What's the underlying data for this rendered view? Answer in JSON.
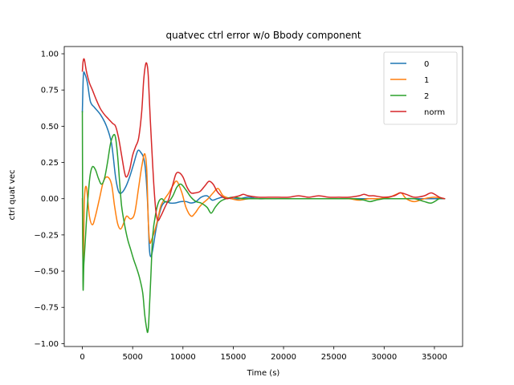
{
  "chart_data": {
    "type": "line",
    "title": "quatvec ctrl error w/o Bbody component",
    "xlabel": "Time (s)",
    "ylabel": "ctrl quat vec",
    "xlim": [
      -1800,
      37800
    ],
    "ylim": [
      -1.02,
      1.05
    ],
    "xticks": [
      0,
      5000,
      10000,
      15000,
      20000,
      25000,
      30000,
      35000
    ],
    "xtick_labels": [
      "0",
      "5000",
      "10000",
      "15000",
      "20000",
      "25000",
      "30000",
      "35000"
    ],
    "yticks": [
      -1.0,
      -0.75,
      -0.5,
      -0.25,
      0.0,
      0.25,
      0.5,
      0.75,
      1.0
    ],
    "ytick_labels": [
      "−1.00",
      "−0.75",
      "−0.50",
      "−0.25",
      "0.00",
      "0.25",
      "0.50",
      "0.75",
      "1.00"
    ],
    "grid": false,
    "legend_position": "upper right",
    "series": [
      {
        "name": "0",
        "color": "#1f77b4",
        "x": [
          0,
          100,
          250,
          500,
          800,
          1200,
          1800,
          2400,
          2900,
          3300,
          3600,
          3900,
          4300,
          4700,
          5100,
          5500,
          5800,
          6100,
          6300,
          6500,
          6650,
          6800,
          7000,
          7300,
          7600,
          7900,
          8300,
          8700,
          9200,
          9800,
          10300,
          10800,
          11300,
          11800,
          12400,
          12900,
          13400,
          14000,
          14800,
          15600,
          16500,
          17500,
          18500,
          19500,
          20500,
          21500,
          22500,
          23500,
          24500,
          25500,
          26500,
          27500,
          28500,
          29500,
          30500,
          31500,
          32500,
          33500,
          34500,
          35500,
          36000
        ],
        "y": [
          0.6,
          0.85,
          0.86,
          0.8,
          0.67,
          0.63,
          0.58,
          0.5,
          0.38,
          0.15,
          0.05,
          0.04,
          0.08,
          0.15,
          0.24,
          0.33,
          0.32,
          0.28,
          0.18,
          -0.05,
          -0.33,
          -0.4,
          -0.35,
          -0.22,
          -0.12,
          -0.05,
          -0.02,
          -0.03,
          -0.03,
          -0.02,
          -0.02,
          -0.03,
          -0.02,
          0.01,
          0.02,
          -0.01,
          0.0,
          0.01,
          0.0,
          0.0,
          0.01,
          0.0,
          0.0,
          0.0,
          0.0,
          0.0,
          0.0,
          0.0,
          0.0,
          0.0,
          0.0,
          0.0,
          0.0,
          0.0,
          0.0,
          0.0,
          0.0,
          0.0,
          0.0,
          0.0,
          0.0
        ]
      },
      {
        "name": "1",
        "color": "#ff7f0e",
        "x": [
          0,
          80,
          200,
          400,
          700,
          1000,
          1300,
          1700,
          2100,
          2500,
          2900,
          3200,
          3500,
          3800,
          4100,
          4400,
          4800,
          5200,
          5600,
          5900,
          6200,
          6400,
          6550,
          6700,
          6900,
          7200,
          7500,
          7800,
          8200,
          8600,
          9000,
          9400,
          9900,
          10300,
          10800,
          11200,
          11600,
          12000,
          12500,
          13000,
          13500,
          14000,
          14800,
          15600,
          16500,
          17500,
          18500,
          19500,
          20500,
          21500,
          22500,
          23500,
          24500,
          25500,
          26500,
          27500,
          28500,
          29500,
          30500,
          31200,
          31700,
          32200,
          33000,
          34000,
          35000,
          36000
        ],
        "y": [
          0.0,
          -0.5,
          -0.02,
          0.08,
          -0.12,
          -0.18,
          -0.12,
          0.0,
          0.12,
          0.15,
          0.1,
          -0.05,
          -0.17,
          -0.21,
          -0.17,
          -0.12,
          -0.14,
          -0.1,
          0.08,
          0.22,
          0.31,
          0.2,
          -0.15,
          -0.3,
          -0.28,
          -0.22,
          -0.14,
          -0.05,
          0.0,
          0.04,
          0.09,
          0.12,
          0.04,
          -0.06,
          -0.12,
          -0.1,
          -0.06,
          -0.03,
          0.0,
          0.04,
          0.07,
          0.02,
          0.0,
          -0.01,
          0.0,
          0.0,
          0.0,
          0.0,
          0.0,
          0.0,
          0.0,
          0.0,
          0.0,
          0.0,
          0.0,
          -0.01,
          0.0,
          0.0,
          0.01,
          0.03,
          0.04,
          0.0,
          -0.02,
          0.0,
          0.01,
          0.0
        ]
      },
      {
        "name": "2",
        "color": "#2ca02c",
        "x": [
          0,
          60,
          150,
          300,
          500,
          750,
          1000,
          1300,
          1600,
          1900,
          2200,
          2500,
          2800,
          3100,
          3300,
          3500,
          3700,
          3900,
          4200,
          4500,
          4800,
          5100,
          5400,
          5700,
          6000,
          6200,
          6400,
          6500,
          6600,
          6800,
          7000,
          7300,
          7600,
          7900,
          8200,
          8600,
          9000,
          9400,
          9800,
          10300,
          10800,
          11300,
          11800,
          12400,
          12800,
          13200,
          13700,
          14300,
          15000,
          16000,
          17000,
          18000,
          19000,
          20000,
          21000,
          22000,
          23000,
          24000,
          25000,
          26000,
          27000,
          28000,
          28600,
          29200,
          30000,
          31000,
          32000,
          33000,
          34000,
          34700,
          35500,
          36000
        ],
        "y": [
          0.6,
          -0.57,
          -0.45,
          -0.28,
          -0.05,
          0.15,
          0.22,
          0.2,
          0.14,
          0.1,
          0.14,
          0.25,
          0.38,
          0.44,
          0.42,
          0.3,
          0.12,
          -0.05,
          -0.18,
          -0.28,
          -0.35,
          -0.42,
          -0.48,
          -0.55,
          -0.65,
          -0.8,
          -0.9,
          -0.92,
          -0.85,
          -0.55,
          -0.25,
          -0.1,
          -0.02,
          0.0,
          -0.02,
          -0.02,
          0.02,
          0.08,
          0.1,
          0.06,
          0.01,
          -0.02,
          -0.03,
          -0.06,
          -0.1,
          -0.06,
          -0.02,
          0.0,
          0.01,
          0.0,
          0.0,
          0.0,
          0.0,
          0.0,
          0.0,
          0.0,
          0.0,
          0.0,
          0.0,
          0.0,
          0.0,
          -0.01,
          -0.02,
          -0.01,
          0.0,
          0.0,
          0.0,
          0.0,
          -0.02,
          -0.03,
          0.0,
          0.0
        ]
      },
      {
        "name": "norm",
        "color": "#d62728",
        "x": [
          0,
          80,
          200,
          400,
          700,
          1000,
          1400,
          1800,
          2200,
          2600,
          3000,
          3300,
          3600,
          3900,
          4200,
          4400,
          4700,
          5000,
          5300,
          5600,
          5900,
          6100,
          6300,
          6450,
          6550,
          6650,
          6750,
          6900,
          7100,
          7300,
          7500,
          7800,
          8200,
          8600,
          9000,
          9300,
          9600,
          10000,
          10400,
          10800,
          11200,
          11700,
          12200,
          12600,
          13000,
          13400,
          13800,
          14300,
          15000,
          15600,
          16000,
          16500,
          17500,
          18500,
          19500,
          20500,
          21500,
          22500,
          23500,
          24500,
          25500,
          26500,
          27500,
          28000,
          28500,
          29000,
          30000,
          31000,
          31600,
          32200,
          33000,
          34000,
          34700,
          35500,
          36000
        ],
        "y": [
          0.88,
          0.95,
          0.96,
          0.88,
          0.8,
          0.75,
          0.68,
          0.62,
          0.58,
          0.55,
          0.52,
          0.5,
          0.42,
          0.3,
          0.18,
          0.15,
          0.2,
          0.3,
          0.36,
          0.42,
          0.6,
          0.82,
          0.93,
          0.92,
          0.85,
          0.7,
          0.55,
          0.35,
          0.1,
          -0.08,
          -0.15,
          -0.12,
          -0.06,
          0.0,
          0.1,
          0.17,
          0.18,
          0.15,
          0.08,
          0.04,
          0.04,
          0.05,
          0.09,
          0.12,
          0.1,
          0.05,
          0.02,
          0.0,
          0.01,
          0.02,
          0.03,
          0.02,
          0.01,
          0.01,
          0.01,
          0.01,
          0.02,
          0.01,
          0.02,
          0.01,
          0.01,
          0.01,
          0.02,
          0.03,
          0.02,
          0.02,
          0.01,
          0.02,
          0.04,
          0.03,
          0.01,
          0.02,
          0.04,
          0.01,
          0.0
        ]
      }
    ]
  }
}
